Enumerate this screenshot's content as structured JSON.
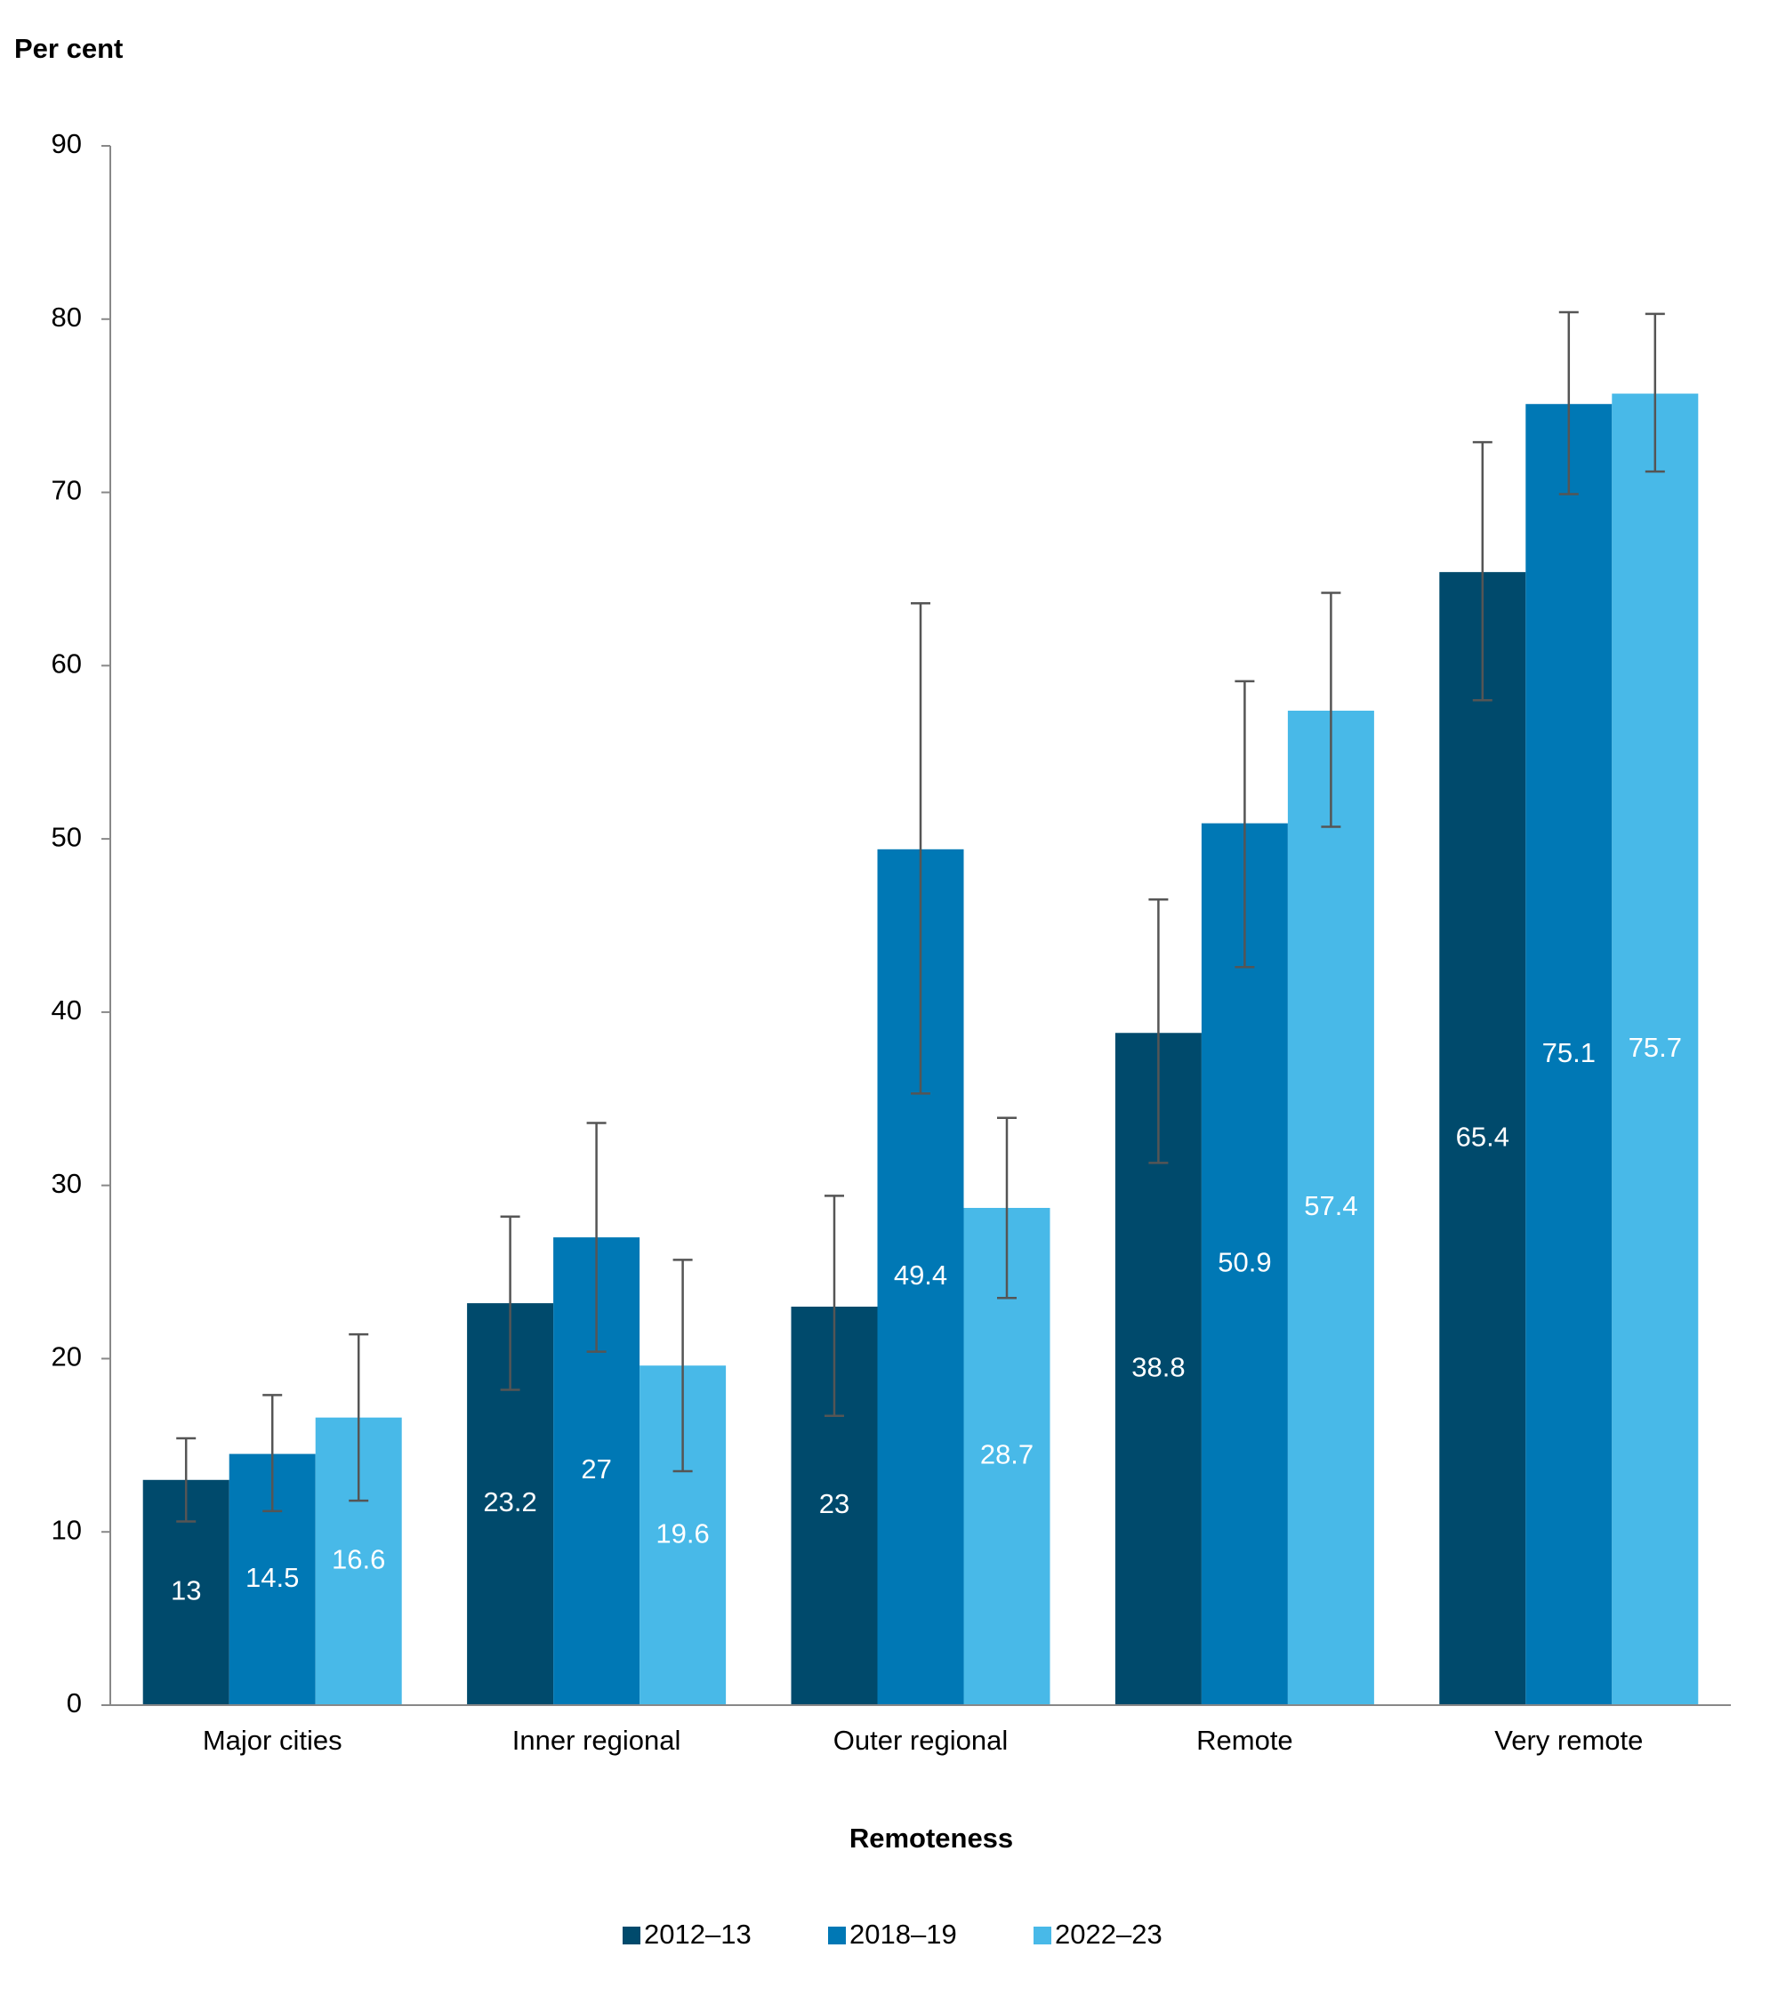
{
  "chart_data": {
    "type": "bar",
    "y_label": "Per cent",
    "x_label": "Remoteness",
    "categories": [
      "Major cities",
      "Inner regional",
      "Outer regional",
      "Remote",
      "Very remote"
    ],
    "series": [
      {
        "name": "2012–13",
        "color": "#004a6c",
        "values": [
          13.0,
          23.2,
          23.0,
          38.8,
          65.4
        ],
        "lower": [
          10.6,
          18.2,
          16.7,
          31.3,
          58.0
        ],
        "upper": [
          15.4,
          28.2,
          29.4,
          46.5,
          72.9
        ]
      },
      {
        "name": "2018–19",
        "color": "#0078b5",
        "values": [
          14.5,
          27.0,
          49.4,
          50.9,
          75.1
        ],
        "lower": [
          11.2,
          20.4,
          35.3,
          42.6,
          69.9
        ],
        "upper": [
          17.9,
          33.6,
          63.6,
          59.1,
          80.4
        ]
      },
      {
        "name": "2022–23",
        "color": "#48b9e8",
        "values": [
          16.6,
          19.6,
          28.7,
          57.4,
          75.7
        ],
        "lower": [
          11.8,
          13.5,
          23.5,
          50.7,
          71.2
        ],
        "upper": [
          21.4,
          25.7,
          33.9,
          64.2,
          80.3
        ]
      }
    ],
    "ylim": [
      0,
      90
    ],
    "yticks": [
      0,
      10,
      20,
      30,
      40,
      50,
      60,
      70,
      80,
      90
    ],
    "legend": "bottom"
  }
}
